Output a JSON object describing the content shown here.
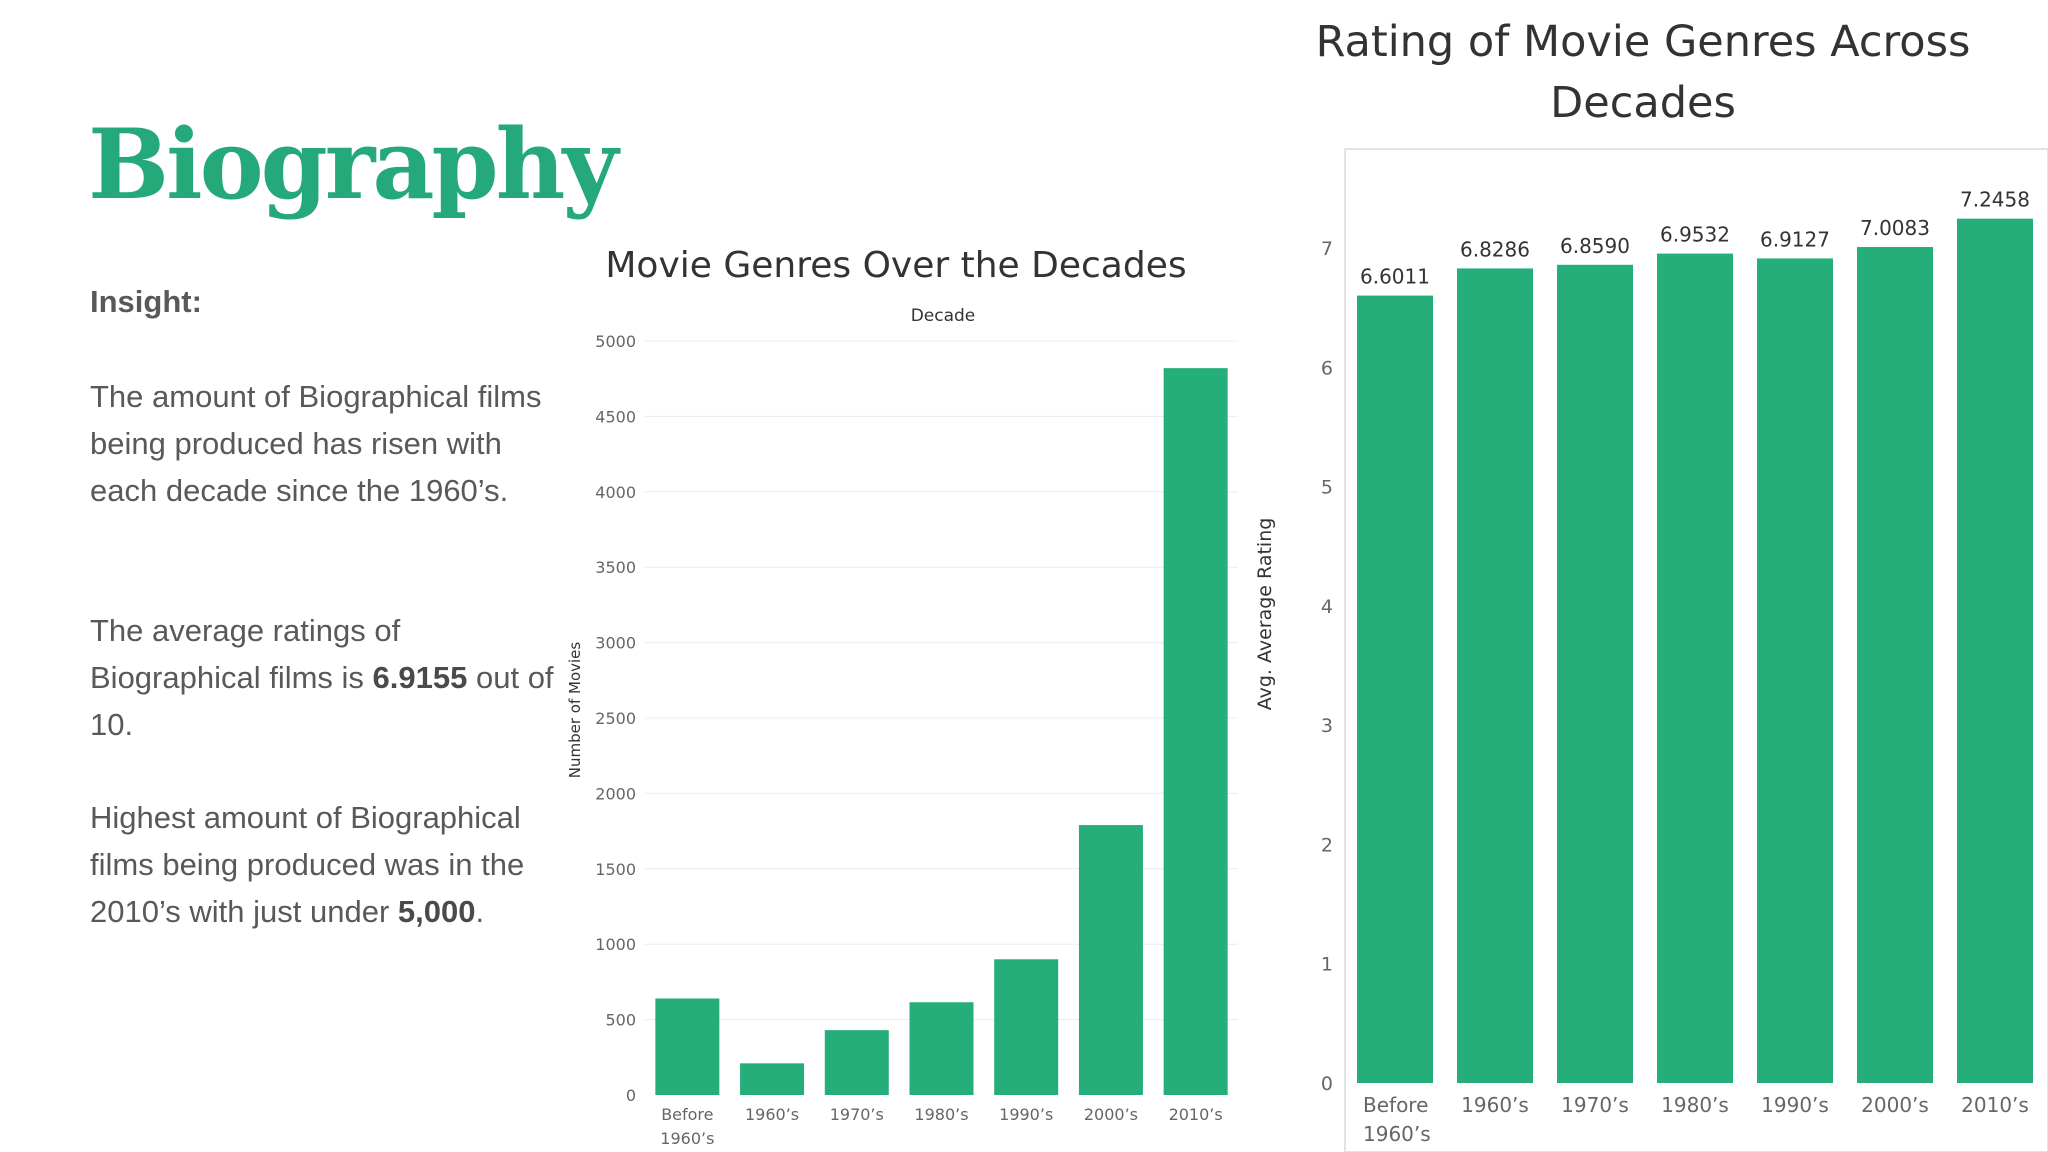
{
  "slide": {
    "title": "Biography",
    "insight_label": "Insight:",
    "p1": "The amount of Biographical films being produced has risen with each decade since the 1960’s.",
    "p2_pre": "The average ratings of Biographical films is ",
    "p2_bold": "6.9155",
    "p2_post": " out of 10.",
    "p3_pre": "Highest amount of Biographical films being produced was in the 2010’s with just under ",
    "p3_bold": "5,000",
    "p3_post": "."
  },
  "colors": {
    "bar": "#25ad7a",
    "title_green": "#25a97a",
    "grid": "#ececec"
  },
  "chart_data": [
    {
      "type": "bar",
      "title": "Movie Genres Over the Decades",
      "header": "Decade",
      "ylabel": "Number of Movies",
      "categories": [
        "Before 1960's",
        "1960's",
        "1970's",
        "1980's",
        "1990's",
        "2000's",
        "2010's"
      ],
      "values": [
        640,
        210,
        430,
        615,
        900,
        1790,
        4820
      ],
      "yticks": [
        0,
        500,
        1000,
        1500,
        2000,
        2500,
        3000,
        3500,
        4000,
        4500,
        5000
      ],
      "ylim": [
        0,
        5000
      ],
      "grid": true
    },
    {
      "type": "bar",
      "title": "Rating of Movie Genres Across Decades",
      "ylabel": "Avg. Average Rating",
      "categories": [
        "Before 1960's",
        "1960's",
        "1970's",
        "1980's",
        "1990's",
        "2000's",
        "2010's"
      ],
      "values": [
        6.6011,
        6.8286,
        6.859,
        6.9532,
        6.9127,
        7.0083,
        7.2458
      ],
      "data_labels": [
        "6.6011",
        "6.8286",
        "6.8590",
        "6.9532",
        "6.9127",
        "7.0083",
        "7.2458"
      ],
      "yticks": [
        0,
        1,
        2,
        3,
        4,
        5,
        6,
        7
      ],
      "ylim": [
        0,
        7.1
      ],
      "grid": false
    }
  ]
}
